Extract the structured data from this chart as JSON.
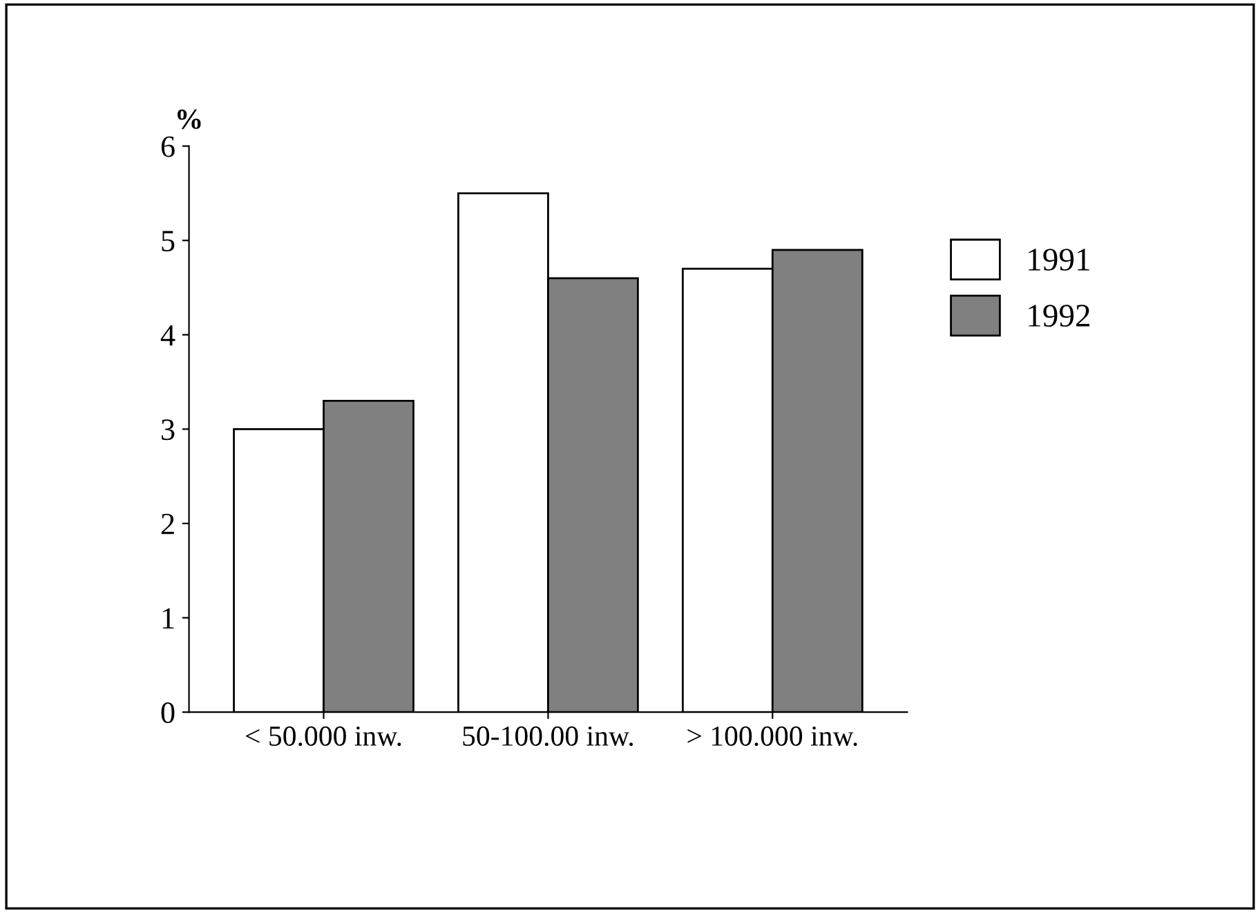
{
  "chart_data": {
    "type": "bar",
    "ylabel": "%",
    "categories": [
      "< 50.000 inw.",
      "50-100.00 inw.",
      "> 100.000 inw."
    ],
    "series": [
      {
        "name": "1991",
        "color": "#ffffff",
        "values": [
          3.0,
          5.5,
          4.7
        ]
      },
      {
        "name": "1992",
        "color": "#808080",
        "values": [
          3.3,
          4.6,
          4.9
        ]
      }
    ],
    "ylim": [
      0,
      6
    ],
    "yticks": [
      0,
      1,
      2,
      3,
      4,
      5,
      6
    ],
    "grid": false,
    "legend": "right"
  }
}
